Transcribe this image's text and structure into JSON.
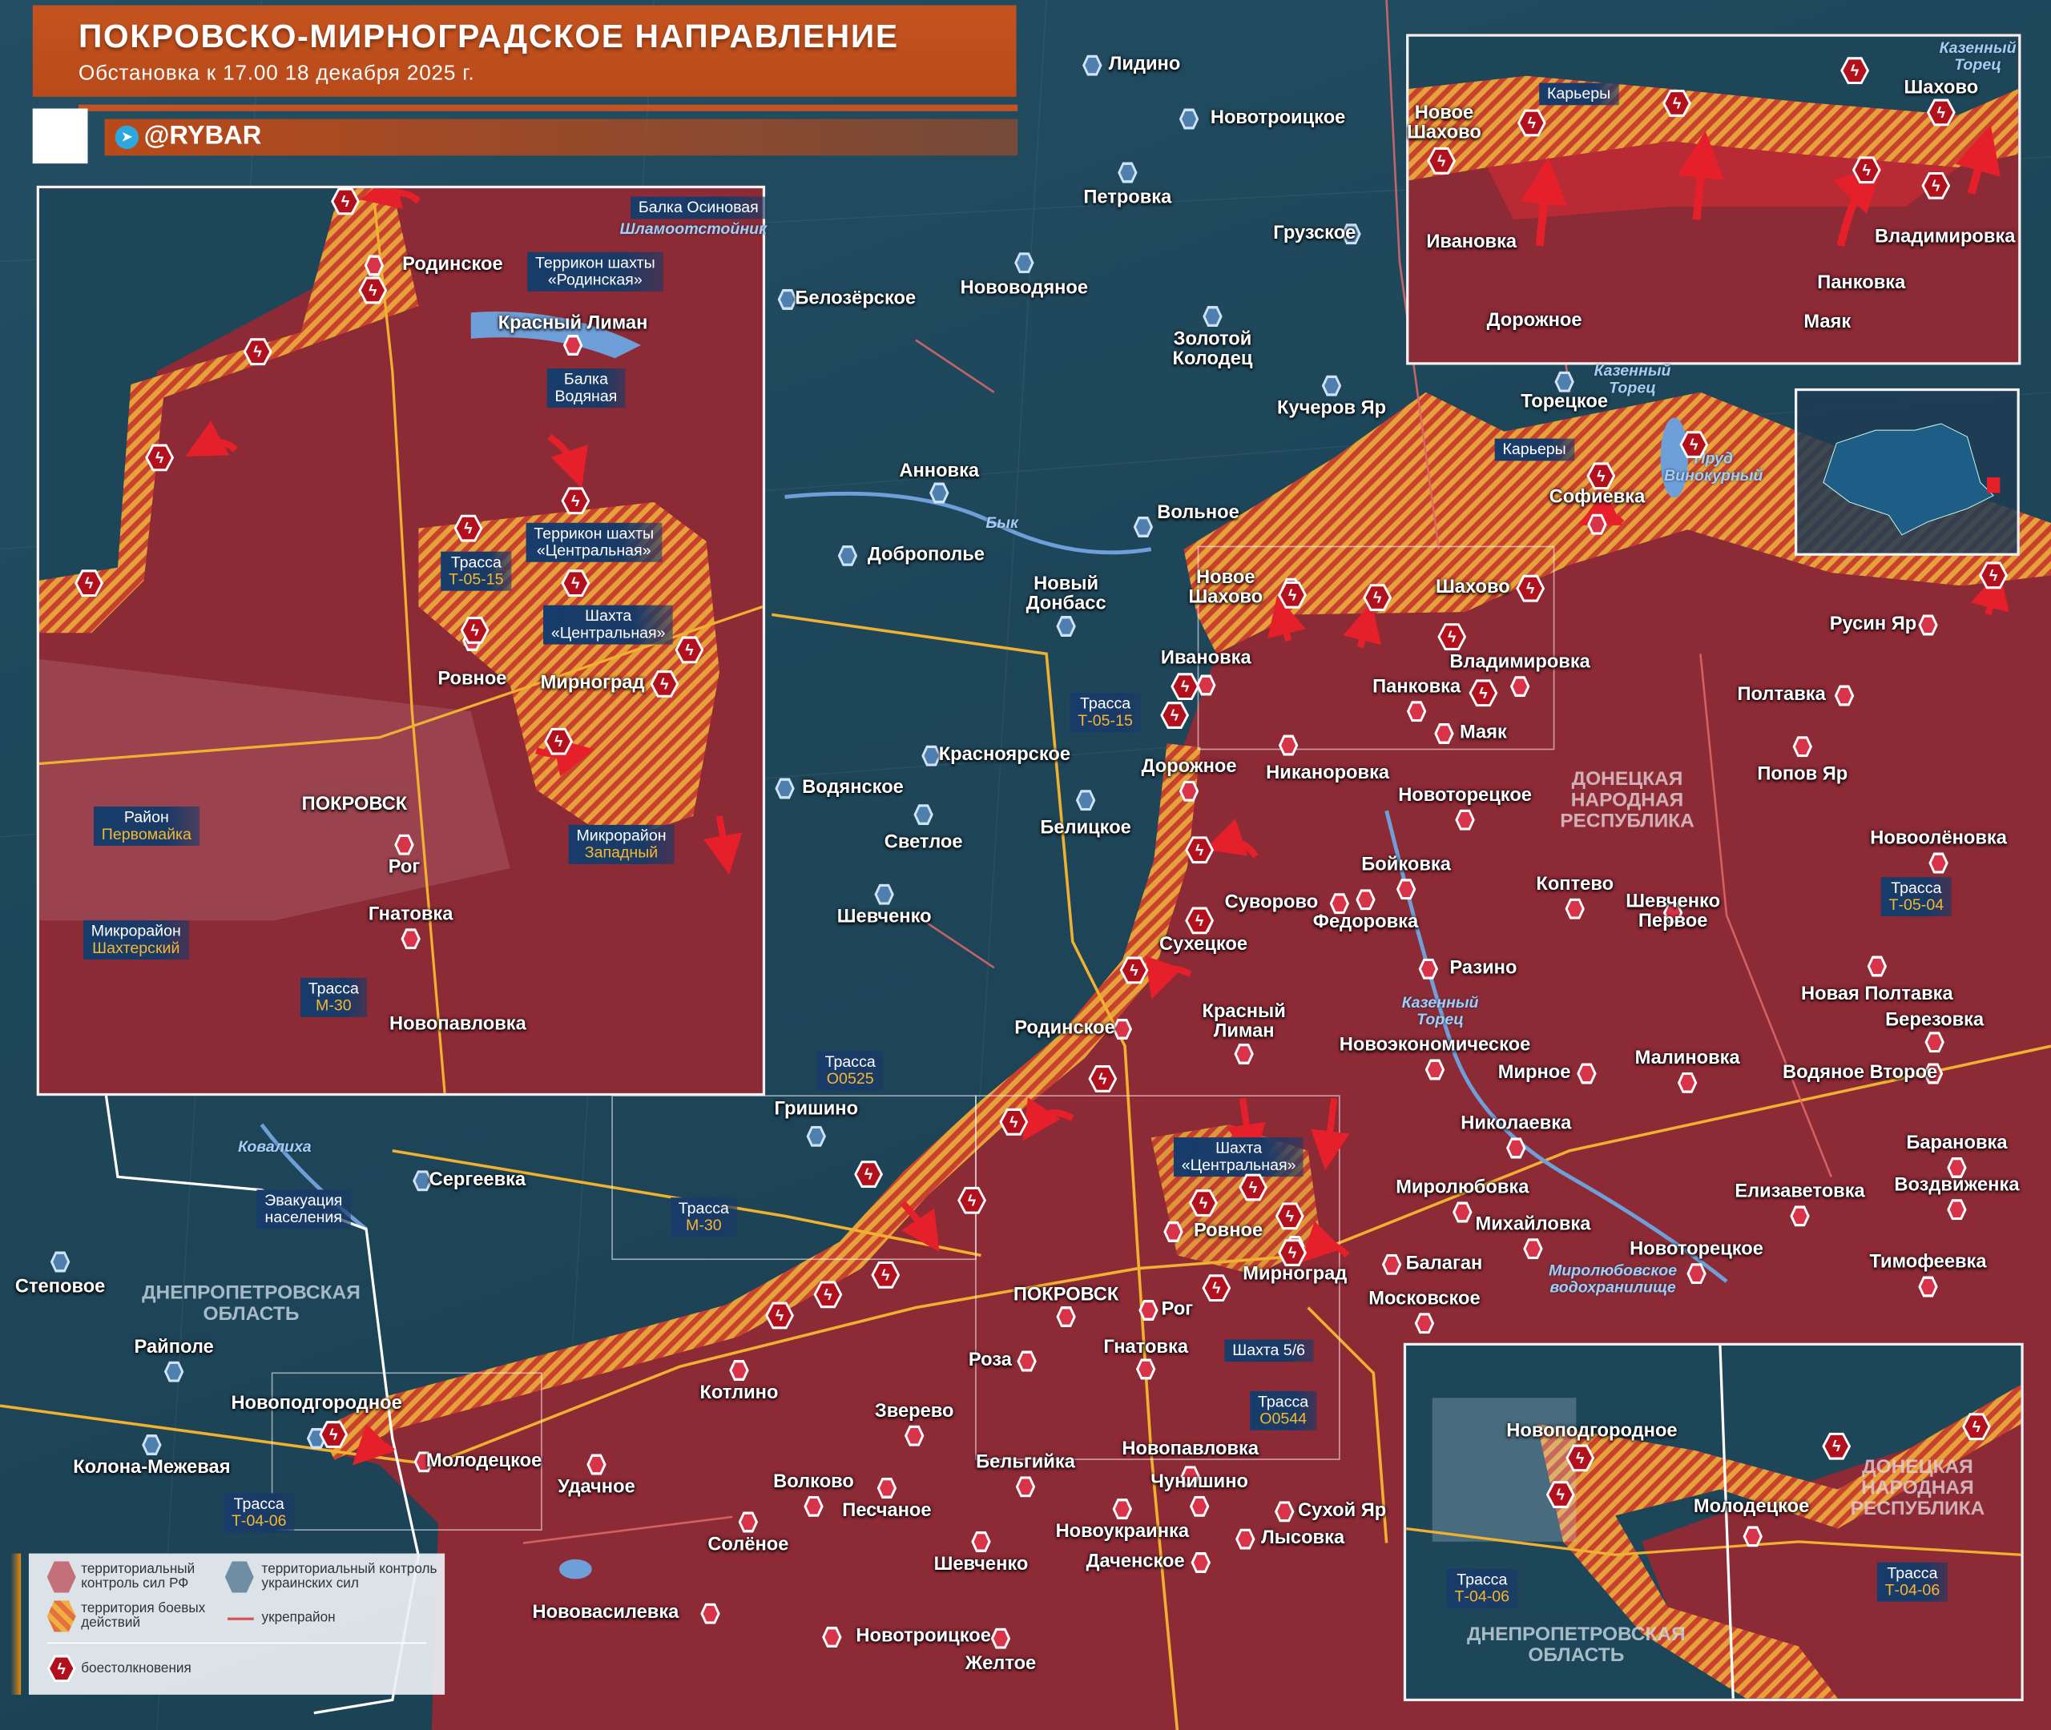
{
  "header": {
    "title": "ПОКРОВСКО-МИРНОГРАДСКОЕ НАПРАВЛЕНИЕ",
    "subtitle": "Обстановка к 17.00 18 декабря 2025 г.",
    "handle": "@RYBAR"
  },
  "colors": {
    "ru_control": "#8c2a36",
    "ua_control": "#1e4659",
    "contested_a": "#e6a23a",
    "contested_b": "#c8412f",
    "clash": "#b3101e",
    "header": "#c4531f",
    "road": "#f0b030",
    "fortline": "#e06a6a"
  },
  "legend": {
    "ru": "территориальный контроль сил РФ",
    "ua": "территориальный контроль украинских сил",
    "combat": "территория боевых действий",
    "fort": "укрепрайон",
    "clash": "боестолкновения"
  },
  "places": [
    {
      "name": "Лидино",
      "control": "ua"
    },
    {
      "name": "Новотроицкое",
      "control": "ua"
    },
    {
      "name": "Петровка",
      "control": "ua"
    },
    {
      "name": "Грузское",
      "control": "ua"
    },
    {
      "name": "Белозёрское",
      "control": "ua"
    },
    {
      "name": "Нововодяное",
      "control": "ua"
    },
    {
      "name": "Золотой\nКолодец",
      "control": "ua"
    },
    {
      "name": "Кучеров Яр",
      "control": "ua"
    },
    {
      "name": "Торецкое",
      "control": "ua"
    },
    {
      "name": "Анновка",
      "control": "ua"
    },
    {
      "name": "Вольное",
      "control": "ua"
    },
    {
      "name": "Софиевка",
      "control": "ru"
    },
    {
      "name": "Доброполье",
      "control": "ua"
    },
    {
      "name": "Новый\nДонбасс",
      "control": "ua"
    },
    {
      "name": "Новое\nШахово",
      "control": "ru"
    },
    {
      "name": "Шахово",
      "control": "ru"
    },
    {
      "name": "Ивановка",
      "control": "ru"
    },
    {
      "name": "Владимировка",
      "control": "ru"
    },
    {
      "name": "Панковка",
      "control": "ru"
    },
    {
      "name": "Маяк",
      "control": "ru"
    },
    {
      "name": "Русин Яр",
      "control": "ru"
    },
    {
      "name": "Полтавка",
      "control": "ru"
    },
    {
      "name": "Красноярское",
      "control": "ua"
    },
    {
      "name": "Дорожное",
      "control": "ru"
    },
    {
      "name": "Никаноровка",
      "control": "ru"
    },
    {
      "name": "Водянское",
      "control": "ua"
    },
    {
      "name": "Новоторецкое",
      "control": "ru"
    },
    {
      "name": "Попов Яр",
      "control": "ru"
    },
    {
      "name": "Белицкое",
      "control": "ua"
    },
    {
      "name": "Светлое",
      "control": "ua"
    },
    {
      "name": "Бойковка",
      "control": "ru"
    },
    {
      "name": "Новоолёновка",
      "control": "ru"
    },
    {
      "name": "Коптево",
      "control": "ru"
    },
    {
      "name": "Шевченко\nПервое",
      "control": "ru"
    },
    {
      "name": "Шевченко",
      "control": "ua"
    },
    {
      "name": "Суворово",
      "control": "ru"
    },
    {
      "name": "Федоровка",
      "control": "ru"
    },
    {
      "name": "Сухецкое",
      "control": "ru"
    },
    {
      "name": "Разино",
      "control": "ru"
    },
    {
      "name": "Новая Полтавка",
      "control": "ru"
    },
    {
      "name": "Березовка",
      "control": "ru"
    },
    {
      "name": "Красный\nЛиман",
      "control": "ru"
    },
    {
      "name": "Родинское",
      "control": "ru"
    },
    {
      "name": "Новоэкономическое",
      "control": "ru"
    },
    {
      "name": "Мирное",
      "control": "ru"
    },
    {
      "name": "Малиновка",
      "control": "ru"
    },
    {
      "name": "Водяное Второе",
      "control": "ru"
    },
    {
      "name": "Гришино",
      "control": "ua"
    },
    {
      "name": "Николаевка",
      "control": "ru"
    },
    {
      "name": "Барановка",
      "control": "ru"
    },
    {
      "name": "Сергеевка",
      "control": "ua"
    },
    {
      "name": "Миролюбовка",
      "control": "ru"
    },
    {
      "name": "Елизаветовка",
      "control": "ru"
    },
    {
      "name": "Воздвиженка",
      "control": "ru"
    },
    {
      "name": "Михайловка",
      "control": "ru"
    },
    {
      "name": "Ровное",
      "control": "ru"
    },
    {
      "name": "Балаган",
      "control": "ru"
    },
    {
      "name": "Новоторецкое",
      "control": "ru"
    },
    {
      "name": "Тимофеевка",
      "control": "ru"
    },
    {
      "name": "Степовое",
      "control": "ua"
    },
    {
      "name": "ПОКРОВСК",
      "control": "ru"
    },
    {
      "name": "Мирноград",
      "control": "ru"
    },
    {
      "name": "Московское",
      "control": "ru"
    },
    {
      "name": "Рог",
      "control": "ru"
    },
    {
      "name": "Райполе",
      "control": "ua"
    },
    {
      "name": "Гнатовка",
      "control": "ru"
    },
    {
      "name": "Роза",
      "control": "ru"
    },
    {
      "name": "Котлино",
      "control": "ru"
    },
    {
      "name": "Новоподгородное",
      "control": "ua"
    },
    {
      "name": "Зверево",
      "control": "ru"
    },
    {
      "name": "Новопавловка",
      "control": "ru"
    },
    {
      "name": "Колона-Межевая",
      "control": "ua"
    },
    {
      "name": "Молодецкое",
      "control": "ru"
    },
    {
      "name": "Бельгийка",
      "control": "ru"
    },
    {
      "name": "Удачное",
      "control": "ru"
    },
    {
      "name": "Волково",
      "control": "ru"
    },
    {
      "name": "Чунишино",
      "control": "ru"
    },
    {
      "name": "Песчаное",
      "control": "ru"
    },
    {
      "name": "Сухой Яр",
      "control": "ru"
    },
    {
      "name": "Новоукраинка",
      "control": "ru"
    },
    {
      "name": "Лысовка",
      "control": "ru"
    },
    {
      "name": "Солёное",
      "control": "ru"
    },
    {
      "name": "Шевченко",
      "control": "ru"
    },
    {
      "name": "Даченское",
      "control": "ru"
    },
    {
      "name": "Нововасилевка",
      "control": "ru"
    },
    {
      "name": "Новотроицкое",
      "control": "ru"
    },
    {
      "name": "Желтое",
      "control": "ru"
    }
  ],
  "regions": [
    {
      "name": "ДОНЕЦКАЯ\nНАРОДНАЯ\nРЕСПУБЛИКА",
      "side": "ru"
    },
    {
      "name": "ДНЕПРОПЕТРОВСКАЯ\nОБЛАСТЬ",
      "side": "ua"
    }
  ],
  "water": [
    "Бык",
    "Казенный\nТорец",
    "Казенный\nТорец",
    "Пруд\nВинокурный",
    "Миролюбовское\nводохранилище",
    "Ковалиха"
  ],
  "tags": [
    {
      "l1": "Карьеры",
      "l2": ""
    },
    {
      "l1": "Трасса",
      "l2": "Т-05-15"
    },
    {
      "l1": "Трасса",
      "l2": "О0525"
    },
    {
      "l1": "Трасса",
      "l2": "М-30"
    },
    {
      "l1": "Шахта",
      "l2": "«Центральная»",
      "white": true
    },
    {
      "l1": "Шахта 5/6",
      "l2": ""
    },
    {
      "l1": "Трасса",
      "l2": "О0544"
    },
    {
      "l1": "Трасса",
      "l2": "Т-04-06"
    },
    {
      "l1": "Трасса",
      "l2": "Т-05-04"
    },
    {
      "l1": "Эвакуация",
      "l2": "населения",
      "white": true
    }
  ],
  "inset_left": {
    "places": [
      "Родинское",
      "Красный Лиман",
      "Ровное",
      "Мирноград",
      "ПОКРОВСК",
      "Рог",
      "Гнатовка",
      "Новопавловка"
    ],
    "tags": [
      {
        "l1": "Балка Осиновая",
        "l2": ""
      },
      {
        "l1": "Террикон шахты",
        "l2": "«Родинская»",
        "white": true
      },
      {
        "l1": "Балка",
        "l2": "Водяная",
        "white": true
      },
      {
        "l1": "Трасса",
        "l2": "Т-05-15"
      },
      {
        "l1": "Террикон шахты",
        "l2": "«Центральная»",
        "white": true
      },
      {
        "l1": "Шахта",
        "l2": "«Центральная»",
        "white": true
      },
      {
        "l1": "Район",
        "l2": "Первомайка"
      },
      {
        "l1": "Микрорайон",
        "l2": "Западный"
      },
      {
        "l1": "Микрорайон",
        "l2": "Шахтерский"
      },
      {
        "l1": "Трасса",
        "l2": "М-30"
      }
    ],
    "water": [
      "Шламоотстойник"
    ]
  },
  "inset_top_right": {
    "places": [
      "Новое\nШахово",
      "Шахово",
      "Ивановка",
      "Владимировка",
      "Панковка",
      "Дорожное",
      "Маяк"
    ],
    "tags": [
      {
        "l1": "Карьеры",
        "l2": ""
      }
    ],
    "water": [
      "Казенный\nТорец"
    ]
  },
  "inset_bottom_right": {
    "places": [
      "Новоподгородное",
      "Молодецкое"
    ],
    "tags": [
      {
        "l1": "Трасса",
        "l2": "Т-04-06"
      },
      {
        "l1": "Трасса",
        "l2": "Т-04-06"
      }
    ],
    "regions": [
      "ДОНЕЦКАЯ\nНАРОДНАЯ\nРЕСПУБЛИКА",
      "ДНЕПРОПЕТРОВСКАЯ\nОБЛАСТЬ"
    ]
  }
}
